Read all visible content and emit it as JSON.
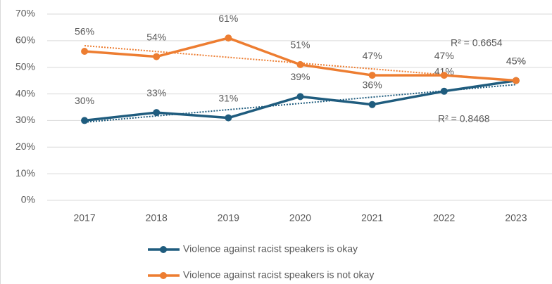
{
  "chart_data": {
    "type": "line",
    "categories": [
      "2017",
      "2018",
      "2019",
      "2020",
      "2021",
      "2022",
      "2023"
    ],
    "series": [
      {
        "name": "Violence against racist speakers is okay",
        "color": "#1f5c7e",
        "values": [
          30,
          33,
          31,
          39,
          36,
          41,
          45
        ],
        "value_labels": [
          "30%",
          "33%",
          "31%",
          "39%",
          "36%",
          "41%",
          "45%"
        ],
        "trendline": true,
        "trendline_label": "R² = 0.8468"
      },
      {
        "name": "Violence against racist speakers is not okay",
        "color": "#ed7d31",
        "values": [
          56,
          54,
          61,
          51,
          47,
          47,
          45
        ],
        "value_labels": [
          "56%",
          "54%",
          "61%",
          "51%",
          "47%",
          "47%",
          "45%"
        ],
        "trendline": true,
        "trendline_label": "R² = 0.6654"
      }
    ],
    "ylim": [
      0,
      70
    ],
    "yticks": [
      {
        "value": 0,
        "label": "0%"
      },
      {
        "value": 10,
        "label": "10%"
      },
      {
        "value": 20,
        "label": "20%"
      },
      {
        "value": 30,
        "label": "30%"
      },
      {
        "value": 40,
        "label": "40%"
      },
      {
        "value": 50,
        "label": "50%"
      },
      {
        "value": 60,
        "label": "60%"
      },
      {
        "value": 70,
        "label": "70%"
      }
    ],
    "grid": true,
    "legend": "bottom"
  }
}
